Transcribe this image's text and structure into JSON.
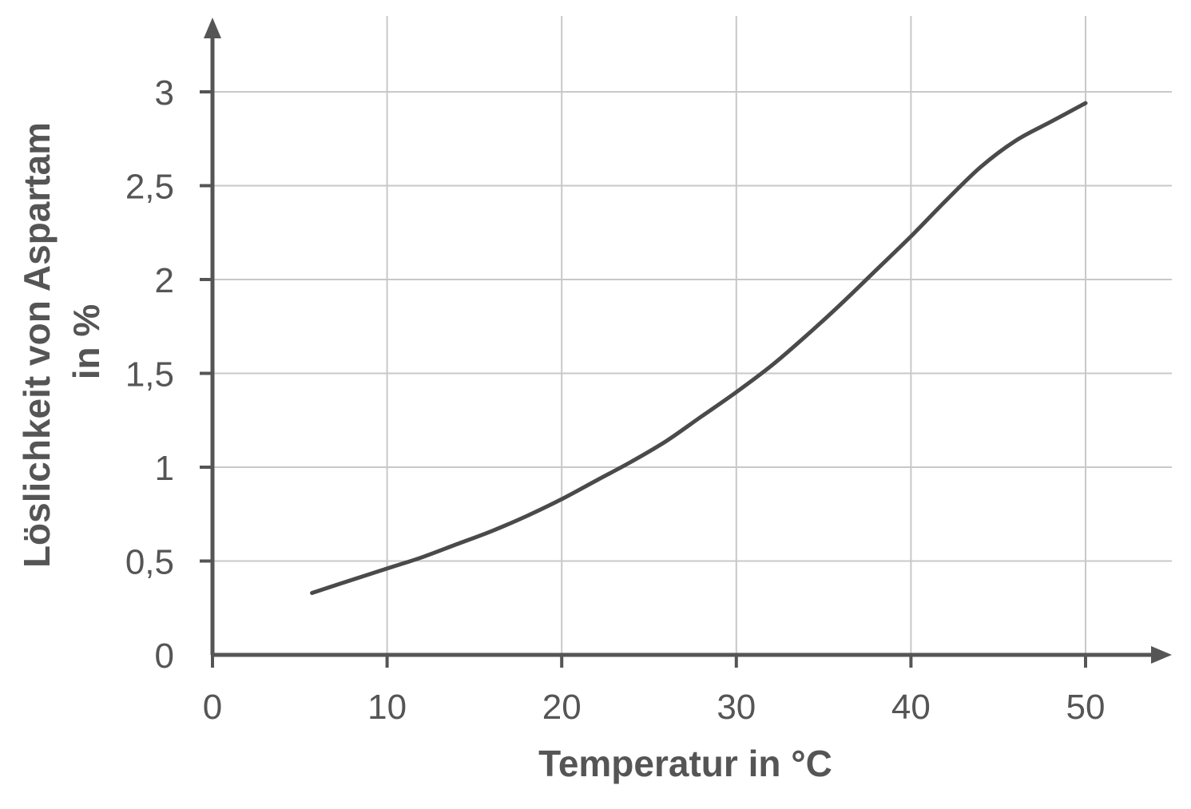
{
  "chart_data": {
    "type": "line",
    "xlabel": "Temperatur in °C",
    "ylabel_line1": "Löslichkeit von Aspartam",
    "ylabel_line2": "in %",
    "xlim": [
      0,
      55
    ],
    "ylim": [
      0,
      3.3
    ],
    "x_ticks": [
      0,
      10,
      20,
      30,
      40,
      50
    ],
    "x_tick_labels": [
      "0",
      "10",
      "20",
      "30",
      "40",
      "50"
    ],
    "y_ticks": [
      0,
      0.5,
      1,
      1.5,
      2,
      2.5,
      3
    ],
    "y_tick_labels": [
      "0",
      "0,5",
      "1",
      "1,5",
      "2",
      "2,5",
      "3"
    ],
    "grid": true,
    "series": [
      {
        "color": "#4a4a4a",
        "x": [
          5.7,
          8,
          10,
          12,
          14,
          16,
          18,
          20,
          22,
          24,
          26,
          28,
          30,
          32,
          34,
          36,
          38,
          40,
          42,
          44,
          46,
          48,
          50
        ],
        "y": [
          0.33,
          0.4,
          0.46,
          0.52,
          0.59,
          0.66,
          0.74,
          0.83,
          0.93,
          1.03,
          1.14,
          1.27,
          1.4,
          1.54,
          1.7,
          1.87,
          2.05,
          2.23,
          2.42,
          2.6,
          2.74,
          2.84,
          2.94
        ]
      }
    ]
  }
}
